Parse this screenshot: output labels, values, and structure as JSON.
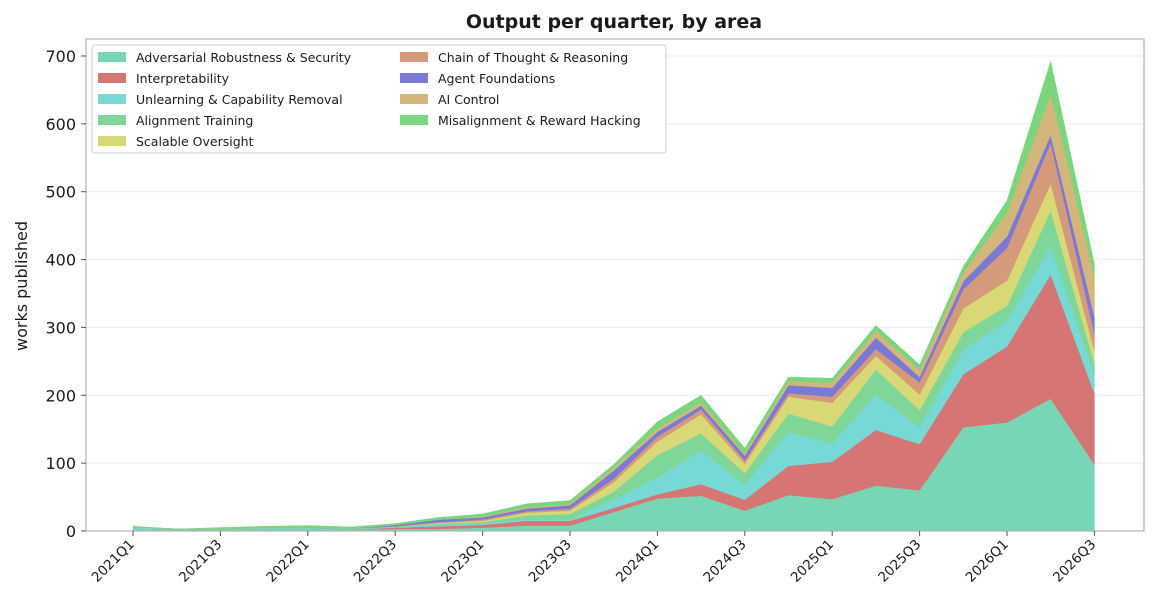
{
  "chart_data": {
    "type": "area",
    "stacked": true,
    "title": "Output per quarter, by area",
    "xlabel": "",
    "ylabel": "works published",
    "ylim": [
      0,
      725
    ],
    "yticks": [
      0,
      100,
      200,
      300,
      400,
      500,
      600,
      700
    ],
    "grid": true,
    "legend_position": "top-left",
    "x": [
      "2021Q1",
      "2021Q2",
      "2021Q3",
      "2021Q4",
      "2022Q1",
      "2022Q2",
      "2022Q3",
      "2022Q4",
      "2023Q1",
      "2023Q2",
      "2023Q3",
      "2023Q4",
      "2024Q1",
      "2024Q2",
      "2024Q3",
      "2024Q4",
      "2025Q1",
      "2025Q2",
      "2025Q3",
      "2025Q4",
      "2026Q1",
      "2026Q2",
      "2026Q3"
    ],
    "xticks": [
      "2021Q1",
      "2021Q3",
      "2022Q1",
      "2022Q3",
      "2023Q1",
      "2023Q3",
      "2024Q1",
      "2024Q3",
      "2025Q1",
      "2025Q3",
      "2026Q1",
      "2026Q3"
    ],
    "series": [
      {
        "name": "Adversarial Robustness & Security",
        "color": "#78d6b5",
        "values": [
          3,
          2,
          1,
          3,
          2,
          2,
          3,
          3,
          5,
          8,
          8,
          28,
          48,
          52,
          30,
          53,
          47,
          67,
          60,
          153,
          160,
          195,
          98
        ]
      },
      {
        "name": "Interpretability",
        "color": "#d57574",
        "values": [
          0,
          0,
          0,
          0,
          0,
          0,
          2,
          4,
          4,
          7,
          7,
          6,
          6,
          17,
          16,
          43,
          55,
          82,
          68,
          78,
          112,
          183,
          105
        ]
      },
      {
        "name": "Unlearning & Capability Removal",
        "color": "#76d9d5",
        "values": [
          2,
          1,
          1,
          1,
          2,
          1,
          1,
          2,
          2,
          2,
          2,
          12,
          25,
          50,
          22,
          50,
          27,
          52,
          25,
          37,
          38,
          42,
          27
        ]
      },
      {
        "name": "Alignment Training",
        "color": "#7ed698",
        "values": [
          1,
          0,
          1,
          1,
          1,
          1,
          1,
          2,
          2,
          6,
          8,
          12,
          33,
          25,
          17,
          27,
          25,
          37,
          25,
          25,
          22,
          52,
          17
        ]
      },
      {
        "name": "Scalable Oversight",
        "color": "#d8d877",
        "values": [
          0,
          0,
          0,
          0,
          0,
          0,
          0,
          1,
          2,
          4,
          5,
          14,
          20,
          28,
          14,
          25,
          35,
          20,
          23,
          35,
          37,
          40,
          19
        ]
      },
      {
        "name": "Chain of Thought & Reasoning",
        "color": "#d49a7a",
        "values": [
          0,
          0,
          0,
          0,
          0,
          0,
          0,
          1,
          2,
          2,
          3,
          5,
          7,
          7,
          5,
          5,
          9,
          10,
          18,
          28,
          48,
          60,
          25
        ]
      },
      {
        "name": "Agent Foundations",
        "color": "#7a7ad6",
        "values": [
          0,
          0,
          0,
          0,
          0,
          0,
          2,
          4,
          3,
          4,
          5,
          12,
          7,
          6,
          7,
          12,
          13,
          17,
          8,
          12,
          17,
          12,
          25
        ]
      },
      {
        "name": "AI Control",
        "color": "#d4b67a",
        "values": [
          0,
          0,
          0,
          0,
          0,
          0,
          0,
          0,
          1,
          2,
          2,
          4,
          5,
          5,
          3,
          6,
          7,
          10,
          10,
          13,
          35,
          60,
          60
        ]
      },
      {
        "name": "Misalignment & Reward Hacking",
        "color": "#79d67c",
        "values": [
          1,
          0,
          2,
          2,
          3,
          2,
          2,
          3,
          4,
          5,
          5,
          5,
          10,
          10,
          8,
          6,
          7,
          8,
          8,
          9,
          18,
          48,
          17
        ]
      }
    ]
  }
}
